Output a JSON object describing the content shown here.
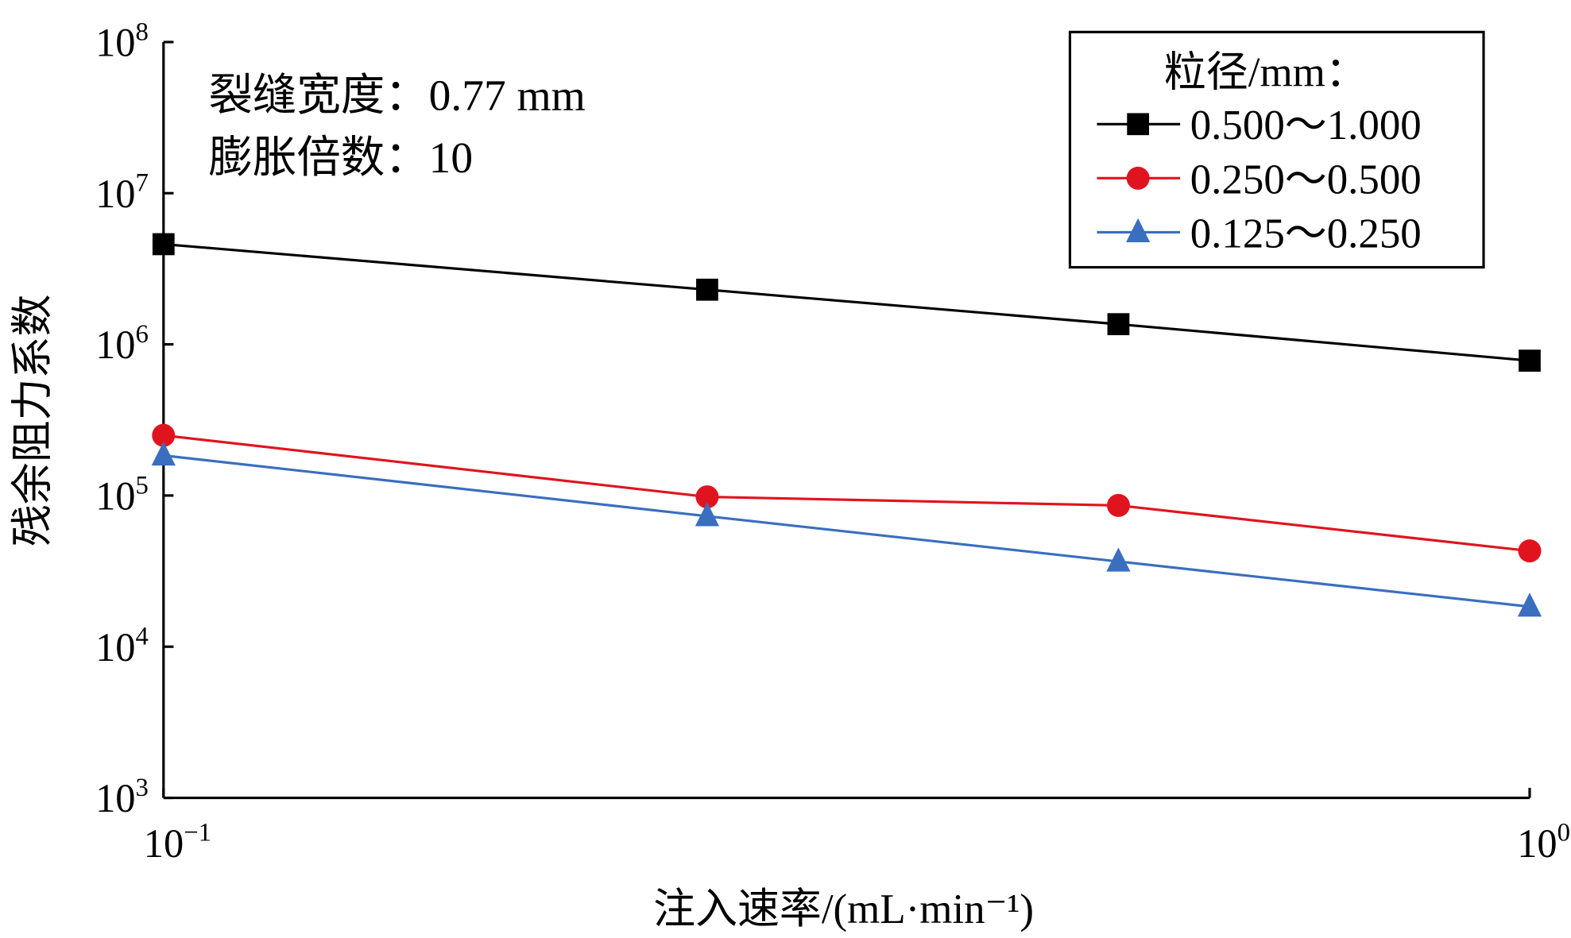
{
  "chart_data": {
    "type": "line",
    "title": "",
    "xlabel": "注入速率/(mL·min⁻¹)",
    "ylabel": "残余阻力系数",
    "xscale": "log",
    "yscale": "log",
    "xlim": [
      0.1,
      1
    ],
    "ylim": [
      1000,
      100000000
    ],
    "x_ticks": [
      {
        "base": "10",
        "exp": "−1",
        "value": 0.1
      },
      {
        "base": "10",
        "exp": "0",
        "value": 1
      }
    ],
    "y_ticks": [
      {
        "base": "10",
        "exp": "3",
        "value": 1000
      },
      {
        "base": "10",
        "exp": "4",
        "value": 10000
      },
      {
        "base": "10",
        "exp": "5",
        "value": 100000
      },
      {
        "base": "10",
        "exp": "6",
        "value": 1000000
      },
      {
        "base": "10",
        "exp": "7",
        "value": 10000000
      },
      {
        "base": "10",
        "exp": "8",
        "value": 100000000
      }
    ],
    "annotations": [
      "裂缝宽度：0.77 mm",
      "膨胀倍数：10"
    ],
    "legend": {
      "title": "粒径/mm：",
      "position": "top-right"
    },
    "x": [
      0.1,
      0.25,
      0.5,
      1.0
    ],
    "series": [
      {
        "name": "0.500～1.000",
        "color": "#000000",
        "marker": "square",
        "values": [
          4600000,
          2300000,
          1360000,
          780000
        ]
      },
      {
        "name": "0.250～0.500",
        "color": "#e0141e",
        "marker": "circle",
        "values": [
          250000,
          98000,
          86000,
          43000
        ]
      },
      {
        "name": "0.125～0.250",
        "color": "#3a6ebf",
        "marker": "triangle",
        "values": [
          184000,
          73000,
          36600,
          18400
        ]
      }
    ]
  }
}
